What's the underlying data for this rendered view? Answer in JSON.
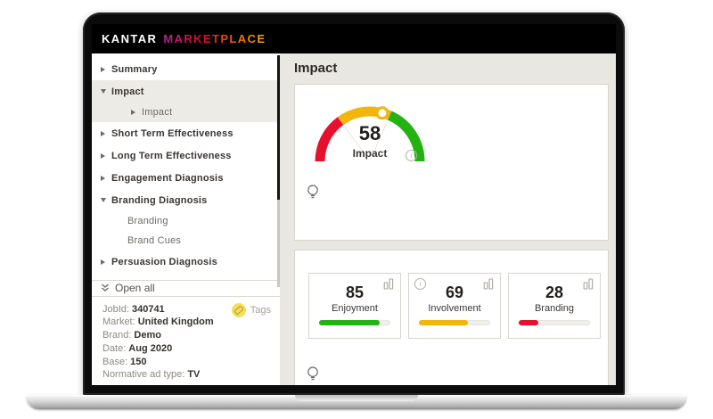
{
  "logo": {
    "kantar": "KANTAR",
    "marketplace": "MARKETPLACE"
  },
  "sidebar": {
    "items": [
      {
        "label": "Summary",
        "state": "collapsed",
        "level": 0,
        "active": false
      },
      {
        "label": "Impact",
        "state": "expanded",
        "level": 0,
        "active": true
      },
      {
        "label": "Impact",
        "state": "collapsed",
        "level": 1,
        "active": true
      },
      {
        "label": "Short Term Effectiveness",
        "state": "collapsed",
        "level": 0,
        "active": false
      },
      {
        "label": "Long Term Effectiveness",
        "state": "collapsed",
        "level": 0,
        "active": false
      },
      {
        "label": "Engagement Diagnosis",
        "state": "collapsed",
        "level": 0,
        "active": false
      },
      {
        "label": "Branding Diagnosis",
        "state": "expanded",
        "level": 0,
        "active": false
      },
      {
        "label": "Branding",
        "state": "none",
        "level": 1,
        "active": false
      },
      {
        "label": "Brand Cues",
        "state": "none",
        "level": 1,
        "active": false
      },
      {
        "label": "Persuasion Diagnosis",
        "state": "collapsed",
        "level": 0,
        "active": false
      }
    ],
    "open_all": "Open all",
    "info": {
      "rows": [
        {
          "label": "JobId:",
          "value": "340741"
        },
        {
          "label": "Market:",
          "value": "United Kingdom"
        },
        {
          "label": "Brand:",
          "value": "Demo"
        },
        {
          "label": "Date:",
          "value": "Aug 2020"
        },
        {
          "label": "Base:",
          "value": "150"
        },
        {
          "label": "Normative ad type:",
          "value": "TV"
        }
      ],
      "tags_label": "Tags"
    }
  },
  "main": {
    "title": "Impact",
    "gauge": {
      "value": 58,
      "label": "Impact",
      "min": 0,
      "max": 100,
      "segments": [
        {
          "from": 0,
          "to": 30,
          "color": "#e8112d",
          "color_name": "red"
        },
        {
          "from": 30,
          "to": 63,
          "color": "#f2b50c",
          "color_name": "yellow"
        },
        {
          "from": 63,
          "to": 100,
          "color": "#23b212",
          "color_name": "green"
        }
      ],
      "marker_ring_color": "#f2b50c"
    },
    "metric_cards": [
      {
        "value": 85,
        "label": "Enjoyment",
        "color": "#23b212",
        "has_info": false
      },
      {
        "value": 69,
        "label": "Involvement",
        "color": "#f2b50c",
        "has_info": true
      },
      {
        "value": 28,
        "label": "Branding",
        "color": "#e8112d",
        "has_info": false
      }
    ]
  },
  "icons": {
    "chevron-right-icon": "▶",
    "chevron-down-icon": "▼",
    "double-chevron-down-icon": "⌄⌄",
    "info-icon": "i",
    "bulb-icon": "💡",
    "bar-chart-icon": "▮▮",
    "tag-icon": "🏷"
  },
  "colors": {
    "header_bg": "#000000",
    "main_bg": "#e9e7e2",
    "card_border": "#d8d5ce",
    "sidebar_active_bg": "#edebe6",
    "accent_red": "#e8112d",
    "accent_yellow": "#f2b50c",
    "accent_green": "#23b212"
  }
}
